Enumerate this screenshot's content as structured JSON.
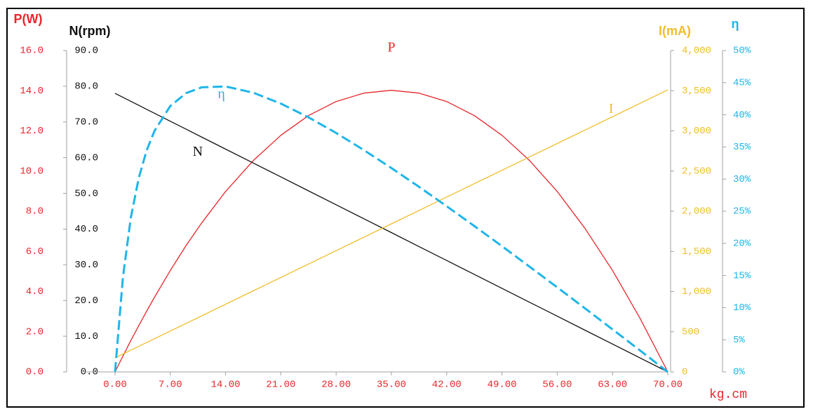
{
  "chart_data": {
    "type": "line",
    "xlabel": "kg.cm",
    "xlim": [
      0,
      70
    ],
    "xticks": [
      {
        "value": 0,
        "label": "0.00"
      },
      {
        "value": 7,
        "label": "7.00"
      },
      {
        "value": 14,
        "label": "14.00"
      },
      {
        "value": 21,
        "label": "21.00"
      },
      {
        "value": 28,
        "label": "28.00"
      },
      {
        "value": 35,
        "label": "35.00"
      },
      {
        "value": 42,
        "label": "42.00"
      },
      {
        "value": 49,
        "label": "49.00"
      },
      {
        "value": 56,
        "label": "56.00"
      },
      {
        "value": 63,
        "label": "63.00"
      },
      {
        "value": 70,
        "label": "70.00"
      }
    ],
    "axes": [
      {
        "label": "P(W)",
        "color": "#e8262b",
        "lim": [
          0,
          16
        ],
        "ticks": [
          {
            "value": 0,
            "label": "0.0"
          },
          {
            "value": 2,
            "label": "2.0"
          },
          {
            "value": 4,
            "label": "4.0"
          },
          {
            "value": 6,
            "label": "6.0"
          },
          {
            "value": 8,
            "label": "8.0"
          },
          {
            "value": 10,
            "label": "10.0"
          },
          {
            "value": 12,
            "label": "12.0"
          },
          {
            "value": 14,
            "label": "14.0"
          },
          {
            "value": 16,
            "label": "16.0"
          }
        ]
      },
      {
        "label": "N(rpm)",
        "color": "#111111",
        "lim": [
          0,
          90
        ],
        "ticks": [
          {
            "value": 0,
            "label": "0.0"
          },
          {
            "value": 10,
            "label": "10.0"
          },
          {
            "value": 20,
            "label": "20.0"
          },
          {
            "value": 30,
            "label": "30.0"
          },
          {
            "value": 40,
            "label": "40.0"
          },
          {
            "value": 50,
            "label": "50.0"
          },
          {
            "value": 60,
            "label": "60.0"
          },
          {
            "value": 70,
            "label": "70.0"
          },
          {
            "value": 80,
            "label": "80.0"
          },
          {
            "value": 90,
            "label": "90.0"
          }
        ]
      },
      {
        "label": "I(mA)",
        "color": "#f0bd2a",
        "lim": [
          0,
          4000
        ],
        "ticks": [
          0,
          500,
          {
            "value": 1000,
            "label": "1,000"
          },
          {
            "value": 1500,
            "label": "1,500"
          },
          {
            "value": 2000,
            "label": "2,000"
          },
          {
            "value": 2500,
            "label": "2,500"
          },
          {
            "value": 3000,
            "label": "3,000"
          },
          {
            "value": 3500,
            "label": "3,500"
          },
          {
            "value": 4000,
            "label": "4,000"
          }
        ]
      },
      {
        "label": "η",
        "color": "#1fb5e8",
        "lim": [
          0,
          50
        ],
        "ticks": [
          {
            "value": 0,
            "label": "0%"
          },
          {
            "value": 5,
            "label": "5%"
          },
          {
            "value": 10,
            "label": "10%"
          },
          {
            "value": 15,
            "label": "15%"
          },
          {
            "value": 20,
            "label": "20%"
          },
          {
            "value": 25,
            "label": "25%"
          },
          {
            "value": 30,
            "label": "30%"
          },
          {
            "value": 35,
            "label": "35%"
          },
          {
            "value": 40,
            "label": "40%"
          },
          {
            "value": 45,
            "label": "45%"
          },
          {
            "value": 50,
            "label": "50%"
          }
        ]
      }
    ],
    "x": [
      0,
      1,
      2,
      3,
      4,
      5,
      7,
      9,
      11,
      14,
      17.5,
      21,
      24.5,
      28,
      31.5,
      35,
      38.5,
      42,
      45.5,
      49,
      52.5,
      56,
      59.5,
      63,
      66.5,
      70
    ],
    "series": [
      {
        "name": "P",
        "axis": 0,
        "color": "#e8262b",
        "dashed": false,
        "values": [
          0,
          0.79,
          1.56,
          2.3,
          3.02,
          3.72,
          5.05,
          6.29,
          7.43,
          8.98,
          10.52,
          11.78,
          12.76,
          13.46,
          13.88,
          14.02,
          13.88,
          13.46,
          12.76,
          11.78,
          10.52,
          8.98,
          7.15,
          5.05,
          2.66,
          0
        ]
      },
      {
        "name": "N",
        "axis": 1,
        "color": "#111111",
        "dashed": false,
        "values": [
          78,
          76.89,
          75.77,
          74.66,
          73.54,
          72.43,
          70.2,
          67.97,
          65.74,
          62.4,
          58.5,
          54.6,
          50.7,
          46.8,
          42.9,
          39,
          35.1,
          31.2,
          27.3,
          23.4,
          19.5,
          15.6,
          11.7,
          7.8,
          3.9,
          0
        ]
      },
      {
        "name": "I",
        "axis": 2,
        "color": "#f0bd2a",
        "dashed": false,
        "values": [
          175,
          222.6,
          270.3,
          317.9,
          365.6,
          413.2,
          508.5,
          603.8,
          699.1,
          842,
          1008.8,
          1175.5,
          1342.3,
          1509,
          1675.8,
          1842.5,
          2009.3,
          2176,
          2342.8,
          2509.5,
          2676.3,
          2843,
          3009.8,
          3176.5,
          3343.3,
          3510
        ]
      },
      {
        "name": "η",
        "axis": 3,
        "color": "#1fb5e8",
        "dashed": true,
        "values": [
          0,
          14.79,
          24.0,
          30.16,
          34.44,
          37.51,
          41.37,
          43.37,
          44.28,
          44.41,
          43.44,
          41.75,
          39.61,
          37.17,
          34.52,
          31.71,
          28.79,
          25.78,
          22.7,
          19.56,
          16.37,
          13.15,
          9.9,
          6.62,
          3.32,
          0
        ]
      }
    ]
  }
}
